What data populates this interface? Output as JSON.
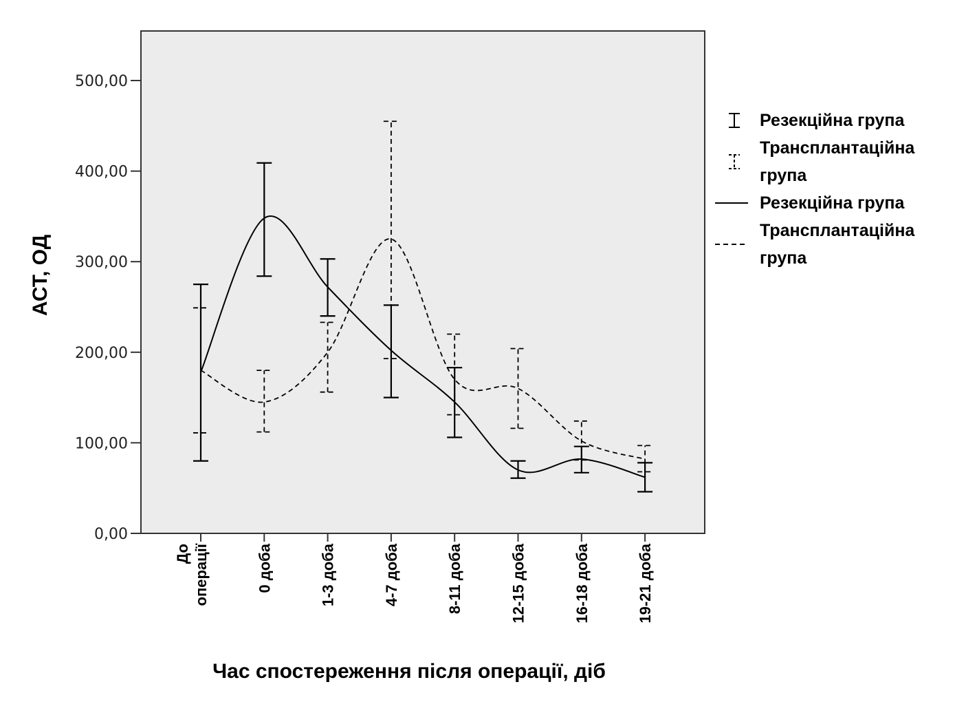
{
  "chart_data": {
    "type": "line",
    "xlabel": "Час спостереження після операції, діб",
    "ylabel": "АСТ, ОД",
    "ylim": [
      0,
      550
    ],
    "yticks": [
      0,
      100,
      200,
      300,
      400,
      500
    ],
    "ytick_labels": [
      "0,00",
      "100,00",
      "200,00",
      "300,00",
      "400,00",
      "500,00"
    ],
    "categories": [
      [
        "До",
        "операції"
      ],
      [
        "0 доба"
      ],
      [
        "1-3 доба"
      ],
      [
        "4-7 доба"
      ],
      [
        "8-11 доба"
      ],
      [
        "12-15 доба"
      ],
      [
        "16-18 доба"
      ],
      [
        "19-21 доба"
      ]
    ],
    "grid": false,
    "legend_position": "right",
    "legend": [
      {
        "label": "Резекційна група",
        "symbol": "errorbar-solid"
      },
      {
        "label": "Трансплантаційна група",
        "lines": [
          "Трансплантаційна",
          "група"
        ],
        "symbol": "errorbar-dashed"
      },
      {
        "label": "Резекційна група",
        "symbol": "line-solid"
      },
      {
        "label": "Трансплантаційна група",
        "lines": [
          "Трансплантаційна",
          "група"
        ],
        "symbol": "line-dashed"
      }
    ],
    "series": [
      {
        "name": "Резекційна група",
        "style": "solid",
        "color": "#000000",
        "values": [
          178,
          348,
          272,
          202,
          145,
          70,
          82,
          62
        ],
        "error_low": [
          80,
          284,
          240,
          150,
          106,
          61,
          67,
          46
        ],
        "error_high": [
          275,
          409,
          303,
          252,
          183,
          80,
          96,
          78
        ]
      },
      {
        "name": "Трансплантаційна група",
        "style": "dashed",
        "color": "#000000",
        "values": [
          180,
          145,
          200,
          325,
          170,
          160,
          102,
          82
        ],
        "error_low": [
          111,
          112,
          156,
          193,
          131,
          116,
          81,
          68
        ],
        "error_high": [
          249,
          180,
          233,
          455,
          220,
          204,
          124,
          97
        ]
      }
    ]
  }
}
